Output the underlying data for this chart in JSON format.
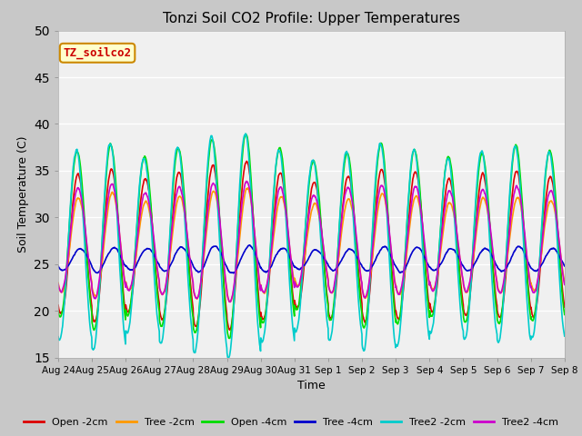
{
  "title": "Tonzi Soil CO2 Profile: Upper Temperatures",
  "xlabel": "Time",
  "ylabel": "Soil Temperature (C)",
  "ylim": [
    15,
    50
  ],
  "yticks": [
    15,
    20,
    25,
    30,
    35,
    40,
    45,
    50
  ],
  "fig_bg_color": "#c8c8c8",
  "plot_bg_color": "#f0f0f0",
  "annotation_text": "TZ_soilco2",
  "annotation_color": "#cc0000",
  "annotation_bg": "#ffffcc",
  "annotation_border": "#cc8800",
  "series": {
    "Open -2cm": {
      "color": "#dd0000",
      "lw": 1.2
    },
    "Tree -2cm": {
      "color": "#ff9900",
      "lw": 1.2
    },
    "Open -4cm": {
      "color": "#00dd00",
      "lw": 1.2
    },
    "Tree -4cm": {
      "color": "#0000cc",
      "lw": 1.2
    },
    "Tree2 -2cm": {
      "color": "#00cccc",
      "lw": 1.2
    },
    "Tree2 -4cm": {
      "color": "#cc00cc",
      "lw": 1.2
    }
  },
  "xtick_labels": [
    "Aug 24",
    "Aug 25",
    "Aug 26",
    "Aug 27",
    "Aug 28",
    "Aug 29",
    "Aug 30",
    "Aug 31",
    "Sep 1",
    "Sep 2",
    "Sep 3",
    "Sep 4",
    "Sep 5",
    "Sep 6",
    "Sep 7",
    "Sep 8"
  ],
  "n_days": 15,
  "pts_per_day": 144
}
